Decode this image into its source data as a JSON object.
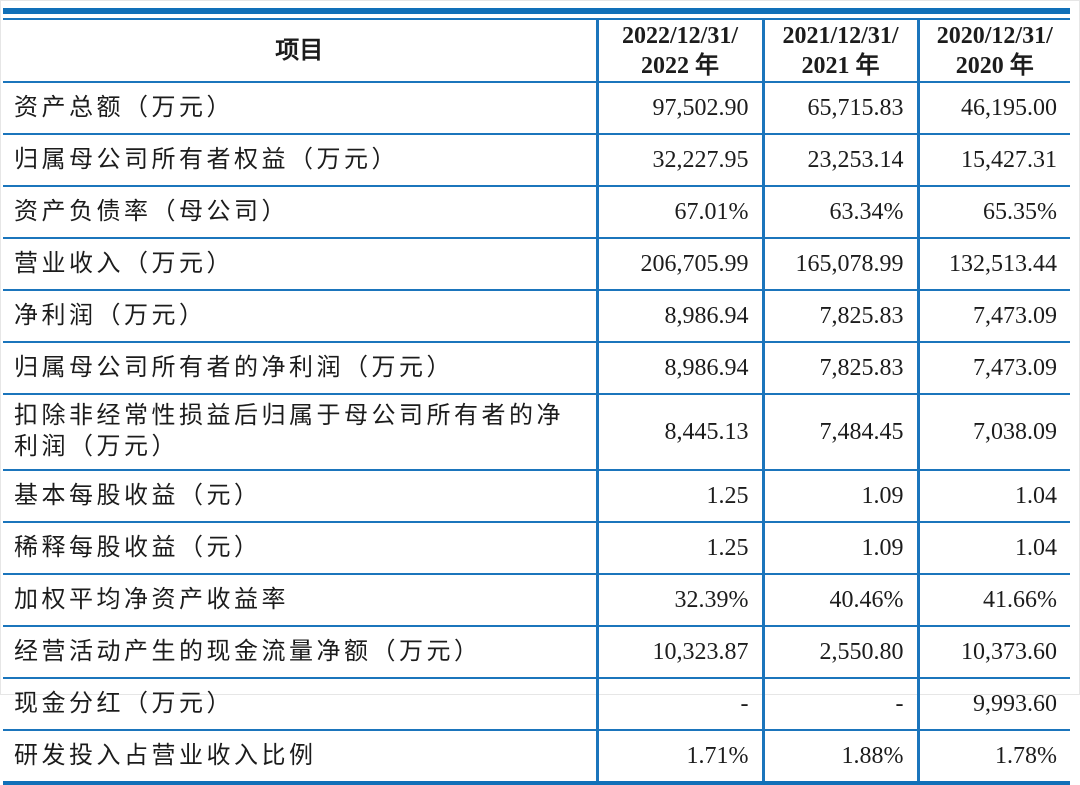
{
  "colors": {
    "grid_blue": "#1b75bc",
    "rule_dark_blue": "#1170b8",
    "text": "#1c1c1c"
  },
  "table": {
    "item_header": "项目",
    "col_headers": [
      {
        "line1": "2022/12/31/",
        "line2": "2022 年"
      },
      {
        "line1": "2021/12/31/",
        "line2": "2021 年"
      },
      {
        "line1": "2020/12/31/",
        "line2": "2020 年"
      }
    ],
    "rows": [
      {
        "item": "资产总额（万元）",
        "v2022": "97,502.90",
        "v2021": "65,715.83",
        "v2020": "46,195.00"
      },
      {
        "item": "归属母公司所有者权益（万元）",
        "v2022": "32,227.95",
        "v2021": "23,253.14",
        "v2020": "15,427.31"
      },
      {
        "item": "资产负债率（母公司）",
        "v2022": "67.01%",
        "v2021": "63.34%",
        "v2020": "65.35%"
      },
      {
        "item": "营业收入（万元）",
        "v2022": "206,705.99",
        "v2021": "165,078.99",
        "v2020": "132,513.44"
      },
      {
        "item": "净利润（万元）",
        "v2022": "8,986.94",
        "v2021": "7,825.83",
        "v2020": "7,473.09"
      },
      {
        "item": "归属母公司所有者的净利润（万元）",
        "v2022": "8,986.94",
        "v2021": "7,825.83",
        "v2020": "7,473.09"
      },
      {
        "item": "扣除非经常性损益后归属于母公司所有者的净利润（万元）",
        "v2022": "8,445.13",
        "v2021": "7,484.45",
        "v2020": "7,038.09"
      },
      {
        "item": "基本每股收益（元）",
        "v2022": "1.25",
        "v2021": "1.09",
        "v2020": "1.04"
      },
      {
        "item": "稀释每股收益（元）",
        "v2022": "1.25",
        "v2021": "1.09",
        "v2020": "1.04"
      },
      {
        "item": "加权平均净资产收益率",
        "v2022": "32.39%",
        "v2021": "40.46%",
        "v2020": "41.66%"
      },
      {
        "item": "经营活动产生的现金流量净额（万元）",
        "v2022": "10,323.87",
        "v2021": "2,550.80",
        "v2020": "10,373.60"
      },
      {
        "item": "现金分红（万元）",
        "v2022": "-",
        "v2021": "-",
        "v2020": "9,993.60"
      },
      {
        "item": "研发投入占营业收入比例",
        "v2022": "1.71%",
        "v2021": "1.88%",
        "v2020": "1.78%"
      }
    ]
  }
}
